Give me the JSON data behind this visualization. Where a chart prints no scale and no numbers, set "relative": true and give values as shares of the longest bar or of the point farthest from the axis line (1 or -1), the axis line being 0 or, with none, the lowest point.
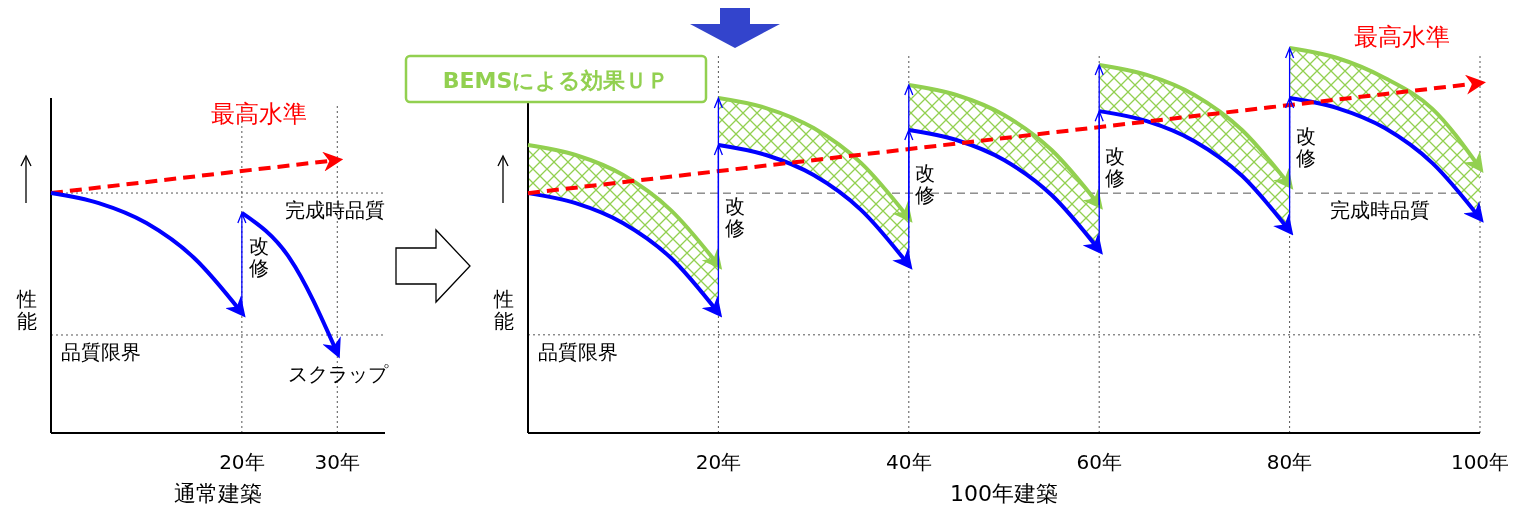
{
  "chart_data": [
    {
      "type": "line",
      "relative": true,
      "grid": "x",
      "xlabel": "通常建築",
      "ylabel": "性能",
      "xlim": [
        0,
        35
      ],
      "xticks": [
        {
          "value": 20,
          "label": "20年"
        },
        {
          "value": 30,
          "label": "30年"
        }
      ],
      "series": [
        {
          "name": "最高水準",
          "color": "#ff0000",
          "line_style": "dashed",
          "x": [
            0,
            30
          ],
          "values": [
            0.879,
            1
          ]
        },
        {
          "color": "#0000ff",
          "x": [
            0,
            5,
            10,
            15,
            20
          ],
          "values": [
            0.879,
            0.842,
            0.769,
            0.641,
            0.44
          ]
        },
        {
          "color": "#0000ff",
          "x": [
            20,
            25,
            30
          ],
          "values": [
            0.806,
            0.641,
            0.293
          ]
        }
      ],
      "ref_lines": [
        {
          "axis": "y",
          "value": 0.879,
          "label": "完成時品質"
        },
        {
          "axis": "y",
          "value": 0.359,
          "label": "品質限界"
        }
      ],
      "annotations": [
        "改修",
        "スクラップ"
      ]
    },
    {
      "type": "line",
      "relative": true,
      "grid": "x",
      "xlabel": "100年建築",
      "ylabel": "性能",
      "xlim": [
        0,
        100
      ],
      "xticks": [
        {
          "value": 20,
          "label": "20年"
        },
        {
          "value": 40,
          "label": "40年"
        },
        {
          "value": 60,
          "label": "60年"
        },
        {
          "value": 80,
          "label": "80年"
        },
        {
          "value": 100,
          "label": "100年"
        }
      ],
      "series": [
        {
          "color": "#0000ff",
          "x": [
            0,
            5,
            10,
            15,
            20
          ],
          "values": [
            0.623,
            0.597,
            0.545,
            0.455,
            0.312
          ],
          "lower": [
            0.623,
            0.597,
            0.545,
            0.455,
            0.312
          ],
          "upper": [
            0.748,
            0.722,
            0.67,
            0.579,
            0.436
          ]
        },
        {
          "color": "#0000ff",
          "x": [
            20,
            25,
            30,
            35,
            40
          ],
          "values": [
            0.748,
            0.722,
            0.67,
            0.579,
            0.436
          ],
          "lower": [
            0.748,
            0.722,
            0.67,
            0.579,
            0.436
          ],
          "upper": [
            0.87,
            0.844,
            0.792,
            0.701,
            0.558
          ]
        },
        {
          "color": "#0000ff",
          "x": [
            40,
            45,
            50,
            55,
            60
          ],
          "values": [
            0.787,
            0.761,
            0.709,
            0.618,
            0.475
          ],
          "lower": [
            0.787,
            0.761,
            0.709,
            0.618,
            0.475
          ],
          "upper": [
            0.904,
            0.878,
            0.826,
            0.735,
            0.592
          ]
        },
        {
          "color": "#0000ff",
          "x": [
            60,
            65,
            70,
            75,
            80
          ],
          "values": [
            0.836,
            0.81,
            0.758,
            0.668,
            0.525
          ],
          "lower": [
            0.836,
            0.81,
            0.758,
            0.668,
            0.525
          ],
          "upper": [
            0.956,
            0.93,
            0.878,
            0.787,
            0.644
          ]
        },
        {
          "color": "#0000ff",
          "x": [
            80,
            85,
            90,
            95,
            100
          ],
          "values": [
            0.87,
            0.844,
            0.792,
            0.701,
            0.558
          ],
          "lower": [
            0.87,
            0.844,
            0.792,
            0.701,
            0.558
          ],
          "upper": [
            1,
            0.974,
            0.922,
            0.842,
            0.688
          ]
        },
        {
          "color": "#92d050",
          "x": [
            0,
            5,
            10,
            15,
            20
          ],
          "values": [
            0.748,
            0.722,
            0.67,
            0.579,
            0.436
          ]
        },
        {
          "color": "#92d050",
          "x": [
            20,
            25,
            30,
            35,
            40
          ],
          "values": [
            0.87,
            0.844,
            0.792,
            0.701,
            0.558
          ]
        },
        {
          "color": "#92d050",
          "x": [
            40,
            45,
            50,
            55,
            60
          ],
          "values": [
            0.904,
            0.878,
            0.826,
            0.735,
            0.592
          ]
        },
        {
          "color": "#92d050",
          "x": [
            60,
            65,
            70,
            75,
            80
          ],
          "values": [
            0.956,
            0.93,
            0.878,
            0.787,
            0.644
          ]
        },
        {
          "color": "#92d050",
          "x": [
            80,
            85,
            90,
            95,
            100
          ],
          "values": [
            1,
            0.974,
            0.922,
            0.842,
            0.688
          ]
        },
        {
          "name": "最高水準",
          "color": "#ff0000",
          "line_style": "dashed",
          "x": [
            0,
            100
          ],
          "values": [
            0.623,
            0.909
          ]
        }
      ],
      "ref_lines": [
        {
          "axis": "y",
          "value": 0.623,
          "label": "完成時品質"
        },
        {
          "axis": "y",
          "value": 0.255,
          "label": "品質限界"
        }
      ],
      "annotations": [
        "改修",
        "改修",
        "改修",
        "改修",
        "BEMSによる効果ＵＰ"
      ]
    }
  ]
}
